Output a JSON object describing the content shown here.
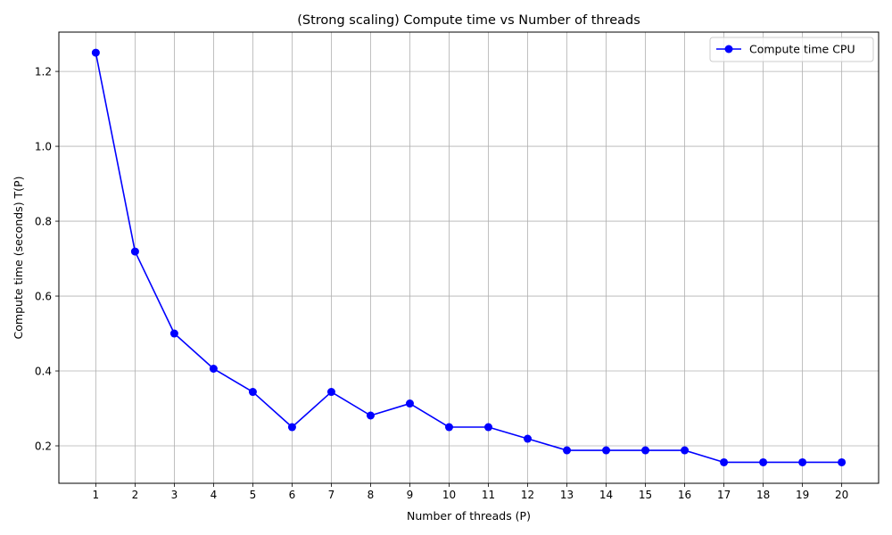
{
  "chart_data": {
    "type": "line",
    "title": "(Strong scaling) Compute time vs Number of threads",
    "xlabel": "Number of threads (P)",
    "ylabel": "Compute time (seconds) T(P)",
    "xlim": [
      0.06,
      20.94
    ],
    "ylim": [
      0.1,
      1.305
    ],
    "x": [
      1,
      2,
      3,
      4,
      5,
      6,
      7,
      8,
      9,
      10,
      11,
      12,
      13,
      14,
      15,
      16,
      17,
      18,
      19,
      20
    ],
    "xticks": [
      "1",
      "2",
      "3",
      "4",
      "5",
      "6",
      "7",
      "8",
      "9",
      "10",
      "11",
      "12",
      "13",
      "14",
      "15",
      "16",
      "17",
      "18",
      "19",
      "20"
    ],
    "yticks": [
      {
        "value": 0.2,
        "label": "0.2"
      },
      {
        "value": 0.4,
        "label": "0.4"
      },
      {
        "value": 0.6,
        "label": "0.6"
      },
      {
        "value": 0.8,
        "label": "0.8"
      },
      {
        "value": 1.0,
        "label": "1.0"
      },
      {
        "value": 1.2,
        "label": "1.2"
      }
    ],
    "grid": true,
    "legend_position": "top-right",
    "series": [
      {
        "name": "Compute time CPU",
        "color": "#0000ff",
        "marker": "circle",
        "values": [
          1.25,
          0.719,
          0.5,
          0.406,
          0.344,
          0.25,
          0.344,
          0.281,
          0.313,
          0.25,
          0.25,
          0.219,
          0.188,
          0.188,
          0.188,
          0.188,
          0.156,
          0.156,
          0.156,
          0.156
        ]
      }
    ]
  }
}
